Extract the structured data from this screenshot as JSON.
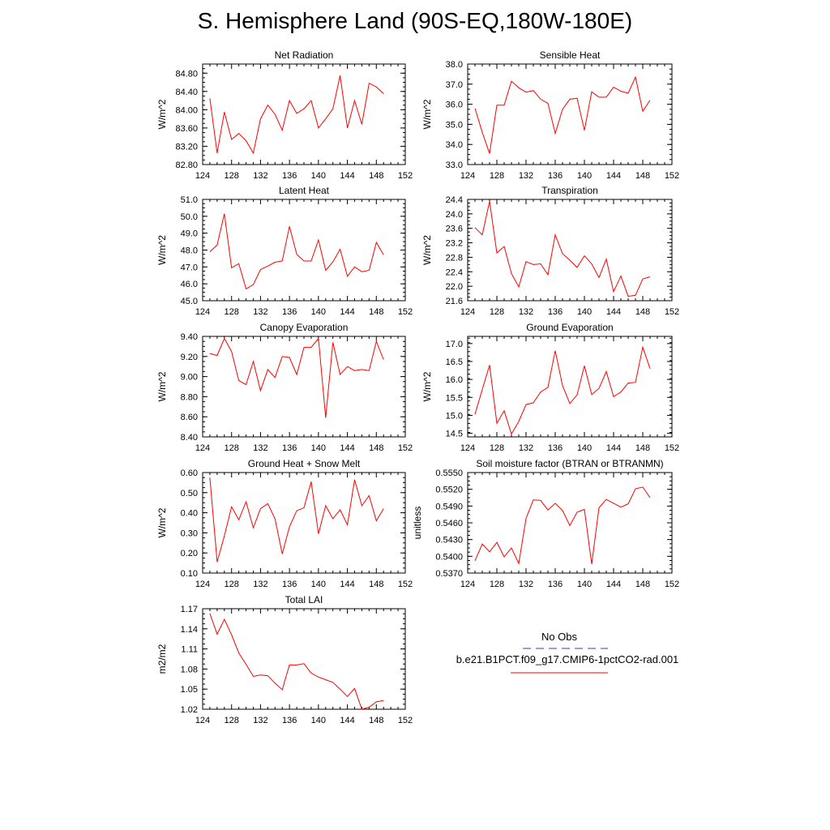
{
  "title": "S. Hemisphere Land (90S-EQ,180W-180E)",
  "legend": {
    "obs_label": "No Obs",
    "obs_color": "#3b3bb0",
    "model_label": "b.e21.B1PCT.f09_g17.CMIP6-1pctCO2-rad.001",
    "model_color": "#ff0000"
  },
  "chart_data": [
    {
      "type": "line",
      "title": "Net Radiation",
      "ylabel": "W/m^2",
      "xlim": [
        124,
        152
      ],
      "ylim": [
        82.8,
        85.0
      ],
      "xticks": [
        "124",
        "128",
        "132",
        "136",
        "140",
        "144",
        "148",
        "152"
      ],
      "yticks": [
        "82.80",
        "83.20",
        "83.60",
        "84.00",
        "84.40",
        "84.80"
      ],
      "series": [
        {
          "x": [
            125,
            126,
            127,
            128,
            129,
            130,
            131,
            132,
            133,
            134,
            135,
            136,
            137,
            138,
            139,
            140,
            141,
            142,
            143,
            144,
            145,
            146,
            147,
            148,
            149
          ],
          "values": [
            84.25,
            83.05,
            83.95,
            83.35,
            83.48,
            83.32,
            83.05,
            83.8,
            84.1,
            83.9,
            83.55,
            84.2,
            83.92,
            84.02,
            84.2,
            83.6,
            83.8,
            84.02,
            84.75,
            83.6,
            84.2,
            83.68,
            84.58,
            84.5,
            84.35
          ]
        }
      ]
    },
    {
      "type": "line",
      "title": "Sensible Heat",
      "ylabel": "W/m^2",
      "xlim": [
        124,
        152
      ],
      "ylim": [
        33.0,
        38.0
      ],
      "xticks": [
        "124",
        "128",
        "132",
        "136",
        "140",
        "144",
        "148",
        "152"
      ],
      "yticks": [
        "33.0",
        "34.0",
        "35.0",
        "36.0",
        "37.0",
        "38.0"
      ],
      "series": [
        {
          "x": [
            125,
            126,
            127,
            128,
            129,
            130,
            131,
            132,
            133,
            134,
            135,
            136,
            137,
            138,
            139,
            140,
            141,
            142,
            143,
            144,
            145,
            146,
            147,
            148,
            149
          ],
          "values": [
            35.8,
            34.6,
            33.55,
            35.95,
            35.95,
            37.15,
            36.82,
            36.6,
            36.68,
            36.25,
            36.05,
            34.55,
            35.75,
            36.25,
            36.3,
            34.7,
            36.62,
            36.35,
            36.35,
            36.85,
            36.65,
            36.55,
            37.35,
            35.65,
            36.2
          ]
        }
      ]
    },
    {
      "type": "line",
      "title": "Latent Heat",
      "ylabel": "W/m^2",
      "xlim": [
        124,
        152
      ],
      "ylim": [
        45.0,
        51.0
      ],
      "xticks": [
        "124",
        "128",
        "132",
        "136",
        "140",
        "144",
        "148",
        "152"
      ],
      "yticks": [
        "45.0",
        "46.0",
        "47.0",
        "48.0",
        "49.0",
        "50.0",
        "51.0"
      ],
      "series": [
        {
          "x": [
            125,
            126,
            127,
            128,
            129,
            130,
            131,
            132,
            133,
            134,
            135,
            136,
            137,
            138,
            139,
            140,
            141,
            142,
            143,
            144,
            145,
            146,
            147,
            148,
            149
          ],
          "values": [
            47.9,
            48.3,
            50.15,
            46.95,
            47.2,
            45.7,
            45.95,
            46.85,
            47.05,
            47.28,
            47.35,
            49.4,
            47.75,
            47.35,
            47.35,
            48.6,
            46.8,
            47.3,
            48.05,
            46.45,
            47.0,
            46.72,
            46.8,
            48.45,
            47.72
          ]
        }
      ]
    },
    {
      "type": "line",
      "title": "Transpiration",
      "ylabel": "W/m^2",
      "xlim": [
        124,
        152
      ],
      "ylim": [
        21.6,
        24.4
      ],
      "xticks": [
        "124",
        "128",
        "132",
        "136",
        "140",
        "144",
        "148",
        "152"
      ],
      "yticks": [
        "21.6",
        "22.0",
        "22.4",
        "22.8",
        "23.2",
        "23.6",
        "24.0",
        "24.4"
      ],
      "series": [
        {
          "x": [
            125,
            126,
            127,
            128,
            129,
            130,
            131,
            132,
            133,
            134,
            135,
            136,
            137,
            138,
            139,
            140,
            141,
            142,
            143,
            144,
            145,
            146,
            147,
            148,
            149
          ],
          "values": [
            23.62,
            23.42,
            24.35,
            22.92,
            23.1,
            22.35,
            21.98,
            22.68,
            22.6,
            22.62,
            22.32,
            23.42,
            22.9,
            22.72,
            22.52,
            22.84,
            22.62,
            22.24,
            22.75,
            21.85,
            22.28,
            21.72,
            21.75,
            22.2,
            22.26
          ]
        }
      ]
    },
    {
      "type": "line",
      "title": "Canopy Evaporation",
      "ylabel": "W/m^2",
      "xlim": [
        124,
        152
      ],
      "ylim": [
        8.4,
        9.4
      ],
      "xticks": [
        "124",
        "128",
        "132",
        "136",
        "140",
        "144",
        "148",
        "152"
      ],
      "yticks": [
        "8.40",
        "8.60",
        "8.80",
        "9.00",
        "9.20",
        "9.40"
      ],
      "series": [
        {
          "x": [
            125,
            126,
            127,
            128,
            129,
            130,
            131,
            132,
            133,
            134,
            135,
            136,
            137,
            138,
            139,
            140,
            141,
            142,
            143,
            144,
            145,
            146,
            147,
            148,
            149
          ],
          "values": [
            9.23,
            9.21,
            9.38,
            9.25,
            8.96,
            8.92,
            9.15,
            8.86,
            9.07,
            8.99,
            9.2,
            9.19,
            9.02,
            9.29,
            9.29,
            9.38,
            8.59,
            9.34,
            9.02,
            9.1,
            9.06,
            9.07,
            9.06,
            9.35,
            9.17
          ]
        }
      ]
    },
    {
      "type": "line",
      "title": "Ground Evaporation",
      "ylabel": "W/m^2",
      "xlim": [
        124,
        152
      ],
      "ylim": [
        14.4,
        17.2
      ],
      "xticks": [
        "124",
        "128",
        "132",
        "136",
        "140",
        "144",
        "148",
        "152"
      ],
      "yticks": [
        "14.5",
        "15.0",
        "15.5",
        "16.0",
        "16.5",
        "17.0"
      ],
      "series": [
        {
          "x": [
            125,
            126,
            127,
            128,
            129,
            130,
            131,
            132,
            133,
            134,
            135,
            136,
            137,
            138,
            139,
            140,
            141,
            142,
            143,
            144,
            145,
            146,
            147,
            148,
            149
          ],
          "values": [
            15.03,
            15.72,
            16.4,
            14.78,
            15.13,
            14.48,
            14.83,
            15.3,
            15.35,
            15.65,
            15.78,
            16.8,
            15.83,
            15.33,
            15.57,
            16.38,
            15.58,
            15.75,
            16.22,
            15.52,
            15.65,
            15.9,
            15.92,
            16.9,
            16.3
          ]
        }
      ]
    },
    {
      "type": "line",
      "title": "Ground Heat + Snow Melt",
      "ylabel": "W/m^2",
      "xlim": [
        124,
        152
      ],
      "ylim": [
        0.1,
        0.6
      ],
      "xticks": [
        "124",
        "128",
        "132",
        "136",
        "140",
        "144",
        "148",
        "152"
      ],
      "yticks": [
        "0.10",
        "0.20",
        "0.30",
        "0.40",
        "0.50",
        "0.60"
      ],
      "series": [
        {
          "x": [
            125,
            126,
            127,
            128,
            129,
            130,
            131,
            132,
            133,
            134,
            135,
            136,
            137,
            138,
            139,
            140,
            141,
            142,
            143,
            144,
            145,
            146,
            147,
            148,
            149
          ],
          "values": [
            0.575,
            0.155,
            0.285,
            0.43,
            0.365,
            0.455,
            0.325,
            0.42,
            0.445,
            0.37,
            0.195,
            0.33,
            0.41,
            0.425,
            0.555,
            0.295,
            0.435,
            0.37,
            0.415,
            0.34,
            0.565,
            0.435,
            0.485,
            0.36,
            0.42
          ]
        }
      ]
    },
    {
      "type": "line",
      "title": "Soil moisture factor (BTRAN or BTRANMN)",
      "ylabel": "unitless",
      "xlim": [
        124,
        152
      ],
      "ylim": [
        0.537,
        0.555
      ],
      "xticks": [
        "124",
        "128",
        "132",
        "136",
        "140",
        "144",
        "148",
        "152"
      ],
      "yticks": [
        "0.5370",
        "0.5400",
        "0.5430",
        "0.5460",
        "0.5490",
        "0.5520",
        "0.5550"
      ],
      "series": [
        {
          "x": [
            125,
            126,
            127,
            128,
            129,
            130,
            131,
            132,
            133,
            134,
            135,
            136,
            137,
            138,
            139,
            140,
            141,
            142,
            143,
            144,
            145,
            146,
            147,
            148,
            149
          ],
          "values": [
            0.5392,
            0.5422,
            0.5408,
            0.5425,
            0.5399,
            0.5415,
            0.5387,
            0.5468,
            0.5501,
            0.55,
            0.5483,
            0.5495,
            0.5482,
            0.5455,
            0.5479,
            0.5484,
            0.5386,
            0.5487,
            0.5502,
            0.5495,
            0.5488,
            0.5494,
            0.5521,
            0.5524,
            0.5505
          ]
        }
      ]
    },
    {
      "type": "line",
      "title": "Total LAI",
      "ylabel": "m2/m2",
      "xlim": [
        124,
        152
      ],
      "ylim": [
        1.02,
        1.17
      ],
      "xticks": [
        "124",
        "128",
        "132",
        "136",
        "140",
        "144",
        "148",
        "152"
      ],
      "yticks": [
        "1.02",
        "1.05",
        "1.08",
        "1.11",
        "1.14",
        "1.17"
      ],
      "series": [
        {
          "x": [
            125,
            126,
            127,
            128,
            129,
            130,
            131,
            132,
            133,
            134,
            135,
            136,
            137,
            138,
            139,
            140,
            141,
            142,
            143,
            144,
            145,
            146,
            147,
            148,
            149
          ],
          "values": [
            1.163,
            1.132,
            1.154,
            1.131,
            1.104,
            1.087,
            1.069,
            1.071,
            1.07,
            1.059,
            1.049,
            1.086,
            1.086,
            1.088,
            1.074,
            1.068,
            1.064,
            1.06,
            1.05,
            1.039,
            1.051,
            1.02,
            1.023,
            1.031,
            1.033
          ]
        }
      ]
    }
  ]
}
